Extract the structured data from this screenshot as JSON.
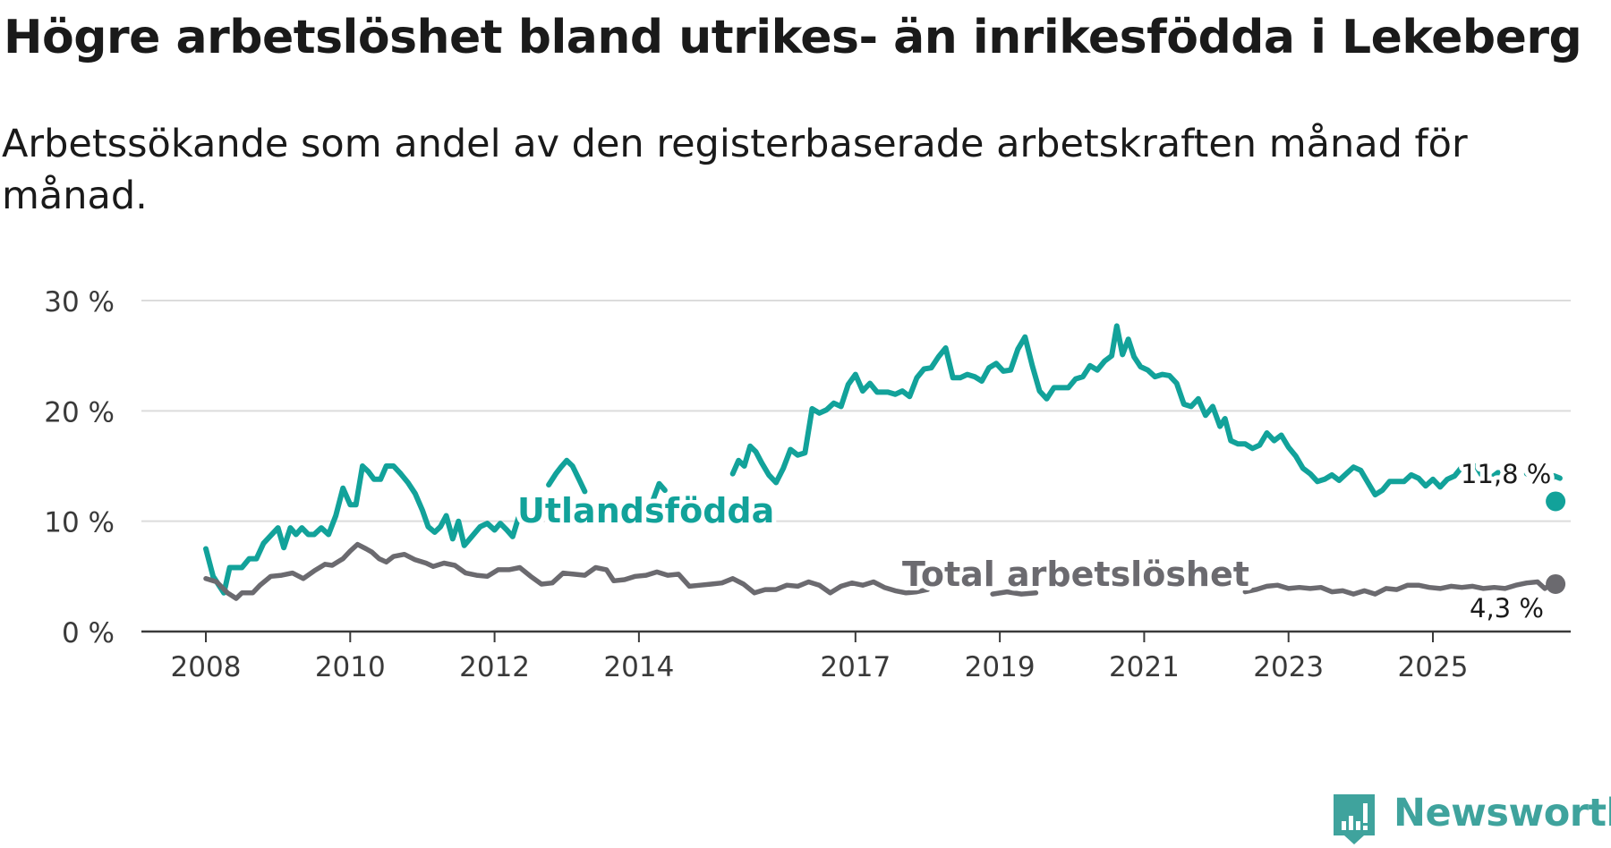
{
  "header": {
    "title": "Högre arbetslöshet bland utrikes- än inrikesfödda i Lekeberg",
    "subtitle": "Arbetssökande som andel av den registerbaserade arbetskraften månad för månad."
  },
  "brand": {
    "name": "Newsworthy",
    "color": "#3fa39d"
  },
  "chart_data": {
    "type": "line",
    "title": "Högre arbetslöshet bland utrikes- än inrikesfödda i Lekeberg",
    "subtitle": "Arbetssökande som andel av den registerbaserade arbetskraften månad för månad.",
    "xlabel": "",
    "ylabel": "",
    "x_unit": "year",
    "xlim": [
      2008,
      2026.75
    ],
    "ylim": [
      0,
      30
    ],
    "yticks": [
      0,
      10,
      20,
      30
    ],
    "ytick_labels": [
      "0 %",
      "10 %",
      "20 %",
      "30 %"
    ],
    "xticks": [
      2008,
      2010,
      2012,
      2014,
      2017,
      2019,
      2021,
      2023,
      2025
    ],
    "xtick_labels": [
      "2008",
      "2010",
      "2012",
      "2014",
      "2017",
      "2019",
      "2021",
      "2023",
      "2025"
    ],
    "grid": true,
    "series": [
      {
        "name": "Utlandsfödda",
        "color": "#12a29a",
        "end_label": "11,8 %",
        "points": [
          [
            2008.0,
            7.5
          ],
          [
            2008.1,
            5.0
          ],
          [
            2008.25,
            3.5
          ],
          [
            2008.33,
            5.8
          ],
          [
            2008.5,
            5.8
          ],
          [
            2008.6,
            6.6
          ],
          [
            2008.7,
            6.6
          ],
          [
            2008.8,
            8.0
          ],
          [
            2009.0,
            9.4
          ],
          [
            2009.08,
            7.6
          ],
          [
            2009.17,
            9.4
          ],
          [
            2009.25,
            8.8
          ],
          [
            2009.33,
            9.4
          ],
          [
            2009.42,
            8.8
          ],
          [
            2009.5,
            8.8
          ],
          [
            2009.6,
            9.4
          ],
          [
            2009.7,
            8.8
          ],
          [
            2009.8,
            10.5
          ],
          [
            2009.9,
            13.0
          ],
          [
            2010.0,
            11.5
          ],
          [
            2010.08,
            11.5
          ],
          [
            2010.17,
            15.0
          ],
          [
            2010.25,
            14.5
          ],
          [
            2010.33,
            13.8
          ],
          [
            2010.42,
            13.8
          ],
          [
            2010.5,
            15.0
          ],
          [
            2010.6,
            15.0
          ],
          [
            2010.7,
            14.3
          ],
          [
            2010.8,
            13.5
          ],
          [
            2010.9,
            12.5
          ],
          [
            2011.0,
            11.0
          ],
          [
            2011.08,
            9.5
          ],
          [
            2011.17,
            9.0
          ],
          [
            2011.25,
            9.5
          ],
          [
            2011.33,
            10.5
          ],
          [
            2011.42,
            8.4
          ],
          [
            2011.5,
            10.0
          ],
          [
            2011.58,
            7.8
          ],
          [
            2011.67,
            8.5
          ],
          [
            2011.8,
            9.5
          ],
          [
            2011.9,
            9.8
          ],
          [
            2012.0,
            9.2
          ],
          [
            2012.08,
            9.8
          ],
          [
            2012.17,
            9.2
          ],
          [
            2012.25,
            8.6
          ],
          [
            2012.33,
            10.3
          ],
          [
            2012.42,
            10.1
          ]
        ],
        "points_b": [
          [
            2012.75,
            13.3
          ],
          [
            2012.85,
            14.3
          ],
          [
            2012.92,
            14.9
          ],
          [
            2013.0,
            15.5
          ],
          [
            2013.08,
            15.0
          ],
          [
            2013.17,
            13.8
          ],
          [
            2013.25,
            12.7
          ]
        ],
        "points_c": [
          [
            2014.2,
            12.0
          ],
          [
            2014.28,
            13.4
          ],
          [
            2014.36,
            12.8
          ]
        ],
        "points_d": [
          [
            2015.3,
            14.3
          ],
          [
            2015.38,
            15.5
          ],
          [
            2015.46,
            15.0
          ],
          [
            2015.54,
            16.8
          ],
          [
            2015.62,
            16.3
          ],
          [
            2015.7,
            15.3
          ],
          [
            2015.8,
            14.2
          ],
          [
            2015.9,
            13.5
          ],
          [
            2016.0,
            14.8
          ],
          [
            2016.1,
            16.5
          ],
          [
            2016.2,
            16.0
          ],
          [
            2016.3,
            16.2
          ],
          [
            2016.4,
            20.2
          ],
          [
            2016.5,
            19.8
          ],
          [
            2016.6,
            20.1
          ],
          [
            2016.7,
            20.7
          ],
          [
            2016.8,
            20.4
          ],
          [
            2016.9,
            22.4
          ],
          [
            2017.0,
            23.3
          ],
          [
            2017.1,
            21.8
          ],
          [
            2017.2,
            22.5
          ],
          [
            2017.3,
            21.7
          ],
          [
            2017.45,
            21.7
          ],
          [
            2017.55,
            21.5
          ],
          [
            2017.65,
            21.8
          ],
          [
            2017.75,
            21.3
          ],
          [
            2017.85,
            23.0
          ],
          [
            2017.95,
            23.8
          ],
          [
            2018.05,
            23.9
          ],
          [
            2018.15,
            24.9
          ],
          [
            2018.25,
            25.7
          ],
          [
            2018.35,
            23.0
          ],
          [
            2018.45,
            23.0
          ],
          [
            2018.55,
            23.3
          ],
          [
            2018.65,
            23.1
          ],
          [
            2018.75,
            22.7
          ],
          [
            2018.85,
            23.9
          ],
          [
            2018.95,
            24.3
          ],
          [
            2019.05,
            23.6
          ],
          [
            2019.15,
            23.7
          ],
          [
            2019.25,
            25.6
          ],
          [
            2019.35,
            26.7
          ],
          [
            2019.45,
            24.1
          ],
          [
            2019.55,
            21.8
          ],
          [
            2019.65,
            21.1
          ],
          [
            2019.75,
            22.1
          ],
          [
            2019.85,
            22.1
          ],
          [
            2019.95,
            22.1
          ],
          [
            2020.05,
            22.9
          ],
          [
            2020.15,
            23.1
          ],
          [
            2020.25,
            24.1
          ],
          [
            2020.35,
            23.7
          ],
          [
            2020.45,
            24.5
          ],
          [
            2020.55,
            25.0
          ],
          [
            2020.62,
            27.7
          ],
          [
            2020.7,
            25.1
          ],
          [
            2020.78,
            26.5
          ],
          [
            2020.86,
            24.9
          ],
          [
            2020.95,
            24.0
          ],
          [
            2021.05,
            23.7
          ],
          [
            2021.15,
            23.1
          ],
          [
            2021.25,
            23.3
          ],
          [
            2021.35,
            23.2
          ],
          [
            2021.45,
            22.5
          ],
          [
            2021.55,
            20.6
          ],
          [
            2021.65,
            20.4
          ],
          [
            2021.75,
            21.1
          ],
          [
            2021.85,
            19.6
          ],
          [
            2021.95,
            20.4
          ],
          [
            2022.05,
            18.6
          ],
          [
            2022.12,
            19.3
          ],
          [
            2022.2,
            17.3
          ],
          [
            2022.3,
            17.0
          ],
          [
            2022.4,
            17.0
          ],
          [
            2022.5,
            16.6
          ],
          [
            2022.6,
            16.9
          ],
          [
            2022.7,
            18.0
          ],
          [
            2022.8,
            17.3
          ],
          [
            2022.9,
            17.8
          ],
          [
            2023.0,
            16.7
          ],
          [
            2023.1,
            15.9
          ],
          [
            2023.2,
            14.8
          ],
          [
            2023.3,
            14.3
          ],
          [
            2023.4,
            13.6
          ],
          [
            2023.5,
            13.8
          ],
          [
            2023.6,
            14.2
          ],
          [
            2023.7,
            13.7
          ],
          [
            2023.8,
            14.3
          ],
          [
            2023.9,
            14.9
          ],
          [
            2024.0,
            14.6
          ],
          [
            2024.1,
            13.5
          ],
          [
            2024.2,
            12.4
          ],
          [
            2024.3,
            12.8
          ],
          [
            2024.4,
            13.6
          ],
          [
            2024.5,
            13.6
          ],
          [
            2024.6,
            13.6
          ],
          [
            2024.7,
            14.2
          ],
          [
            2024.8,
            13.9
          ],
          [
            2024.9,
            13.2
          ],
          [
            2025.0,
            13.8
          ],
          [
            2025.1,
            13.1
          ],
          [
            2025.2,
            13.8
          ],
          [
            2025.3,
            14.1
          ],
          [
            2025.4,
            14.9
          ],
          [
            2025.5,
            14.9
          ],
          [
            2025.6,
            15.0
          ],
          [
            2025.7,
            13.9
          ],
          [
            2025.8,
            13.9
          ],
          [
            2025.9,
            14.4
          ],
          [
            2026.0,
            14.3
          ],
          [
            2026.1,
            14.6
          ]
        ],
        "points_e": [
          [
            2026.3,
            14.3
          ],
          [
            2026.4,
            14.8
          ],
          [
            2026.5,
            14.1
          ],
          [
            2026.6,
            13.5
          ],
          [
            2026.68,
            14.1
          ],
          [
            2026.76,
            13.9
          ]
        ],
        "end_point": [
          2026.7,
          11.8
        ]
      },
      {
        "name": "Total arbetslöshet",
        "color": "#6b6a6f",
        "end_label": "4,3 %",
        "points": [
          [
            2008.0,
            4.8
          ],
          [
            2008.15,
            4.5
          ],
          [
            2008.3,
            3.5
          ],
          [
            2008.42,
            3.0
          ],
          [
            2008.5,
            3.5
          ],
          [
            2008.65,
            3.5
          ],
          [
            2008.75,
            4.2
          ],
          [
            2008.9,
            5.0
          ],
          [
            2009.05,
            5.1
          ],
          [
            2009.2,
            5.3
          ],
          [
            2009.35,
            4.8
          ],
          [
            2009.5,
            5.5
          ],
          [
            2009.65,
            6.1
          ],
          [
            2009.75,
            6.0
          ],
          [
            2009.9,
            6.6
          ],
          [
            2010.0,
            7.3
          ],
          [
            2010.1,
            7.9
          ],
          [
            2010.22,
            7.5
          ],
          [
            2010.3,
            7.2
          ],
          [
            2010.4,
            6.6
          ],
          [
            2010.5,
            6.3
          ],
          [
            2010.6,
            6.8
          ],
          [
            2010.75,
            7.0
          ],
          [
            2010.9,
            6.5
          ],
          [
            2011.05,
            6.2
          ],
          [
            2011.15,
            5.9
          ],
          [
            2011.3,
            6.2
          ],
          [
            2011.45,
            6.0
          ],
          [
            2011.6,
            5.3
          ],
          [
            2011.75,
            5.1
          ],
          [
            2011.9,
            5.0
          ],
          [
            2012.05,
            5.6
          ],
          [
            2012.2,
            5.6
          ],
          [
            2012.35,
            5.8
          ],
          [
            2012.5,
            5.0
          ],
          [
            2012.65,
            4.3
          ],
          [
            2012.8,
            4.4
          ],
          [
            2012.95,
            5.3
          ],
          [
            2013.1,
            5.2
          ],
          [
            2013.25,
            5.1
          ],
          [
            2013.4,
            5.8
          ],
          [
            2013.55,
            5.6
          ],
          [
            2013.65,
            4.6
          ],
          [
            2013.8,
            4.7
          ],
          [
            2013.95,
            5.0
          ],
          [
            2014.1,
            5.1
          ],
          [
            2014.25,
            5.4
          ],
          [
            2014.4,
            5.1
          ],
          [
            2014.55,
            5.2
          ],
          [
            2014.7,
            4.1
          ],
          [
            2014.85,
            4.2
          ],
          [
            2015.0,
            4.3
          ],
          [
            2015.15,
            4.4
          ],
          [
            2015.3,
            4.8
          ],
          [
            2015.45,
            4.3
          ],
          [
            2015.6,
            3.5
          ],
          [
            2015.75,
            3.8
          ],
          [
            2015.9,
            3.8
          ],
          [
            2016.05,
            4.2
          ],
          [
            2016.2,
            4.1
          ],
          [
            2016.35,
            4.5
          ],
          [
            2016.5,
            4.2
          ],
          [
            2016.65,
            3.5
          ],
          [
            2016.8,
            4.1
          ],
          [
            2016.95,
            4.4
          ],
          [
            2017.1,
            4.2
          ],
          [
            2017.25,
            4.5
          ],
          [
            2017.4,
            4.0
          ],
          [
            2017.55,
            3.7
          ],
          [
            2017.7,
            3.5
          ],
          [
            2017.85,
            3.6
          ],
          [
            2018.0,
            3.8
          ]
        ],
        "points_b": [
          [
            2018.9,
            3.4
          ],
          [
            2019.1,
            3.6
          ],
          [
            2019.3,
            3.4
          ],
          [
            2019.5,
            3.5
          ]
        ],
        "points_c": [
          [
            2022.4,
            3.6
          ],
          [
            2022.55,
            3.8
          ],
          [
            2022.7,
            4.1
          ],
          [
            2022.85,
            4.2
          ],
          [
            2023.0,
            3.9
          ],
          [
            2023.15,
            4.0
          ],
          [
            2023.3,
            3.9
          ],
          [
            2023.45,
            4.0
          ],
          [
            2023.6,
            3.6
          ],
          [
            2023.75,
            3.7
          ],
          [
            2023.9,
            3.4
          ],
          [
            2024.05,
            3.7
          ],
          [
            2024.2,
            3.4
          ],
          [
            2024.35,
            3.9
          ],
          [
            2024.5,
            3.8
          ],
          [
            2024.65,
            4.2
          ],
          [
            2024.8,
            4.2
          ],
          [
            2024.95,
            4.0
          ],
          [
            2025.1,
            3.9
          ],
          [
            2025.25,
            4.1
          ],
          [
            2025.4,
            4.0
          ],
          [
            2025.55,
            4.1
          ],
          [
            2025.7,
            3.9
          ],
          [
            2025.85,
            4.0
          ],
          [
            2026.0,
            3.9
          ],
          [
            2026.15,
            4.2
          ],
          [
            2026.3,
            4.4
          ],
          [
            2026.45,
            4.5
          ],
          [
            2026.55,
            3.9
          ],
          [
            2026.62,
            4.2
          ]
        ],
        "end_point": [
          2026.7,
          4.3
        ]
      }
    ],
    "annotations": [
      {
        "text": "Utlandsfödda",
        "series": "Utlandsfödda"
      },
      {
        "text": "Total arbetslöshet",
        "series": "Total arbetslöshet"
      },
      {
        "text": "11,8 %",
        "series": "Utlandsfödda",
        "role": "end-value"
      },
      {
        "text": "4,3 %",
        "series": "Total arbetslöshet",
        "role": "end-value"
      }
    ]
  }
}
